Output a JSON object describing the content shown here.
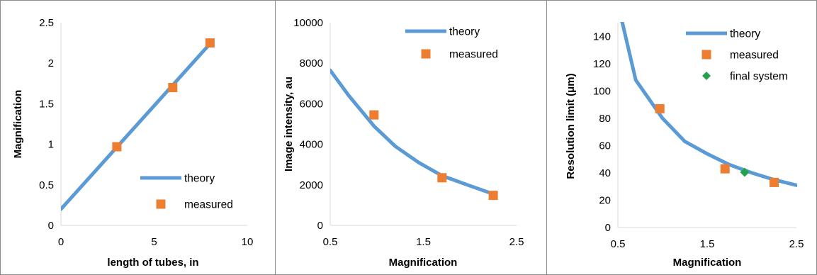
{
  "colors": {
    "theory": "#5b9bd5",
    "measured": "#ed7d31",
    "final_system": "#22a24a",
    "axis": "#d9d9d9",
    "frame": "#8c8c8c"
  },
  "chart_data": [
    {
      "type": "line",
      "xlabel": "length of tubes, in",
      "ylabel": "Magnification",
      "xlim": [
        0,
        10
      ],
      "ylim": [
        0,
        2.5
      ],
      "xticks": [
        0,
        5,
        10
      ],
      "yticks": [
        0,
        0.5,
        1,
        1.5,
        2,
        2.5
      ],
      "xtick_labels": [
        "0",
        "5",
        "10"
      ],
      "ytick_labels": [
        "0",
        "0.5",
        "1",
        "1.5",
        "2",
        "2.5"
      ],
      "legend_position": "bottom-right",
      "grid": false,
      "series": [
        {
          "name": "theory",
          "kind": "line",
          "color_key": "theory",
          "x": [
            0,
            8
          ],
          "y": [
            0.2,
            2.24
          ]
        },
        {
          "name": "measured",
          "kind": "scatter",
          "marker": "square",
          "color_key": "measured",
          "x": [
            3,
            6,
            8
          ],
          "y": [
            0.97,
            1.7,
            2.25
          ]
        }
      ]
    },
    {
      "type": "line",
      "xlabel": "Magnification",
      "ylabel": "Image intensity, au",
      "xlim": [
        0.5,
        2.5
      ],
      "ylim": [
        0,
        10000
      ],
      "xticks": [
        0.5,
        1.5,
        2.5
      ],
      "yticks": [
        0,
        2000,
        4000,
        6000,
        8000,
        10000
      ],
      "xtick_labels": [
        "0.5",
        "1.5",
        "2.5"
      ],
      "ytick_labels": [
        "0",
        "2000",
        "4000",
        "6000",
        "8000",
        "10000"
      ],
      "legend_position": "top-right",
      "grid": false,
      "series": [
        {
          "name": "theory",
          "kind": "line",
          "color_key": "theory",
          "x": [
            0.5,
            0.7,
            0.97,
            1.2,
            1.45,
            1.7,
            2.0,
            2.25
          ],
          "y": [
            7650,
            6400,
            4900,
            3900,
            3100,
            2450,
            1950,
            1550
          ]
        },
        {
          "name": "measured",
          "kind": "scatter",
          "marker": "square",
          "color_key": "measured",
          "x": [
            0.97,
            1.7,
            2.25
          ],
          "y": [
            5450,
            2350,
            1480
          ]
        }
      ]
    },
    {
      "type": "line",
      "xlabel": "Magnification",
      "ylabel": "Resolution limit (μm)",
      "xlim": [
        0.5,
        2.5
      ],
      "ylim": [
        0,
        150
      ],
      "xticks": [
        0.5,
        1.5,
        2.5
      ],
      "yticks": [
        0,
        20,
        40,
        60,
        80,
        100,
        120,
        140
      ],
      "xtick_labels": [
        "0.5",
        "1.5",
        "2.5"
      ],
      "ytick_labels": [
        "0",
        "20",
        "40",
        "60",
        "80",
        "100",
        "120",
        "140"
      ],
      "legend_position": "top-right",
      "grid": false,
      "series": [
        {
          "name": "theory",
          "kind": "line",
          "color_key": "theory",
          "x": [
            0.5,
            0.55,
            0.7,
            1.0,
            1.25,
            1.5,
            1.75,
            2.0,
            2.25,
            2.5
          ],
          "y": [
            158,
            150,
            108,
            80,
            63,
            54,
            46,
            40,
            35,
            31
          ]
        },
        {
          "name": "measured",
          "kind": "scatter",
          "marker": "square",
          "color_key": "measured",
          "x": [
            0.97,
            1.7,
            2.25
          ],
          "y": [
            87,
            43,
            33
          ]
        },
        {
          "name": "final system",
          "kind": "scatter",
          "marker": "diamond",
          "color_key": "final_system",
          "x": [
            1.92
          ],
          "y": [
            40.5
          ]
        }
      ]
    }
  ]
}
